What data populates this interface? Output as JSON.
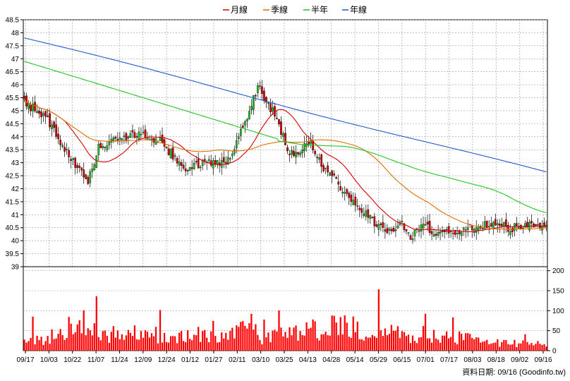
{
  "chart_data": {
    "type": "candlestick",
    "legend": [
      {
        "name": "月線",
        "color": "#d40000"
      },
      {
        "name": "季線",
        "color": "#e07000"
      },
      {
        "name": "半年",
        "color": "#22c422"
      },
      {
        "name": "年線",
        "color": "#2255cc"
      }
    ],
    "price_axis": {
      "min": 39,
      "max": 48.5,
      "ticks": [
        "48.5",
        "48",
        "47.5",
        "47",
        "46.5",
        "46",
        "45.5",
        "45",
        "44.5",
        "44",
        "43.5",
        "43",
        "42.5",
        "42",
        "41.5",
        "41",
        "40.5",
        "40",
        "39.5",
        "39"
      ]
    },
    "volume_axis": {
      "min": 0,
      "max": 210,
      "ticks": [
        "200",
        "150",
        "100",
        "50",
        "0"
      ]
    },
    "x_labels": [
      "09/17",
      "10/03",
      "10/22",
      "11/07",
      "11/24",
      "12/09",
      "12/24",
      "01/12",
      "01/27",
      "02/11",
      "03/10",
      "03/25",
      "04/13",
      "04/28",
      "05/14",
      "05/29",
      "06/15",
      "07/01",
      "07/17",
      "08/03",
      "08/18",
      "09/02",
      "09/16"
    ],
    "candle_up_color": "#22c422",
    "candle_down_color": "#dd0000",
    "volume_color": "#ff0000",
    "close_anchors": [
      [
        0,
        45.3
      ],
      [
        10,
        44.8
      ],
      [
        20,
        43.4
      ],
      [
        30,
        42.2
      ],
      [
        35,
        43.6
      ],
      [
        45,
        44.0
      ],
      [
        55,
        44.1
      ],
      [
        65,
        43.8
      ],
      [
        75,
        42.7
      ],
      [
        85,
        43.0
      ],
      [
        95,
        43.0
      ],
      [
        105,
        44.6
      ],
      [
        110,
        46.0
      ],
      [
        118,
        44.8
      ],
      [
        125,
        43.3
      ],
      [
        135,
        43.7
      ],
      [
        142,
        42.7
      ],
      [
        150,
        42.0
      ],
      [
        160,
        41.1
      ],
      [
        170,
        40.3
      ],
      [
        178,
        40.7
      ],
      [
        182,
        40.0
      ],
      [
        188,
        40.8
      ],
      [
        192,
        40.3
      ],
      [
        200,
        40.3
      ],
      [
        210,
        40.5
      ],
      [
        220,
        40.6
      ],
      [
        230,
        40.5
      ],
      [
        240,
        40.6
      ],
      [
        246,
        40.6
      ]
    ],
    "volume_anchors": [
      [
        0,
        25
      ],
      [
        20,
        40
      ],
      [
        30,
        80
      ],
      [
        35,
        40
      ],
      [
        50,
        45
      ],
      [
        70,
        35
      ],
      [
        85,
        40
      ],
      [
        95,
        30
      ],
      [
        105,
        55
      ],
      [
        112,
        35
      ],
      [
        125,
        40
      ],
      [
        145,
        60
      ],
      [
        160,
        55
      ],
      [
        170,
        45
      ],
      [
        180,
        40
      ],
      [
        190,
        40
      ],
      [
        205,
        35
      ],
      [
        220,
        20
      ],
      [
        246,
        15
      ]
    ],
    "footer": "資料日期: 09/16  (Goodinfo.tw)"
  }
}
